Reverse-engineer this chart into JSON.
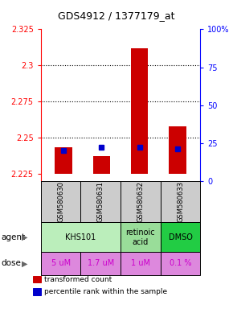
{
  "title": "GDS4912 / 1377179_at",
  "samples": [
    "GSM580630",
    "GSM580631",
    "GSM580632",
    "GSM580633"
  ],
  "bar_bottoms": [
    2.225,
    2.225,
    2.225,
    2.225
  ],
  "bar_tops": [
    2.243,
    2.237,
    2.312,
    2.258
  ],
  "percentile_values": [
    20,
    22,
    22,
    21
  ],
  "ylim_left": [
    2.22,
    2.325
  ],
  "ylim_right": [
    0,
    100
  ],
  "yticks_left": [
    2.225,
    2.25,
    2.275,
    2.3,
    2.325
  ],
  "yticks_right": [
    0,
    25,
    50,
    75,
    100
  ],
  "ytick_labels_right": [
    "0",
    "25",
    "50",
    "75",
    "100%"
  ],
  "bar_color": "#cc0000",
  "percentile_color": "#0000cc",
  "dose_labels": [
    "5 uM",
    "1.7 uM",
    "1 uM",
    "0.1 %"
  ],
  "dose_color": "#dd88dd",
  "dose_text_color": "#cc00cc",
  "sample_bg_color": "#cccccc",
  "legend_bar_color": "#cc0000",
  "legend_dot_color": "#0000cc",
  "legend_label_bar": "transformed count",
  "legend_label_dot": "percentile rank within the sample",
  "agent_groups": [
    {
      "label": "KHS101",
      "span": 2,
      "color": "#bbeebb"
    },
    {
      "label": "retinoic\nacid",
      "span": 1,
      "color": "#99dd99"
    },
    {
      "label": "DMSO",
      "span": 1,
      "color": "#22cc44"
    }
  ],
  "grid_lines": [
    2.25,
    2.275,
    2.3
  ]
}
